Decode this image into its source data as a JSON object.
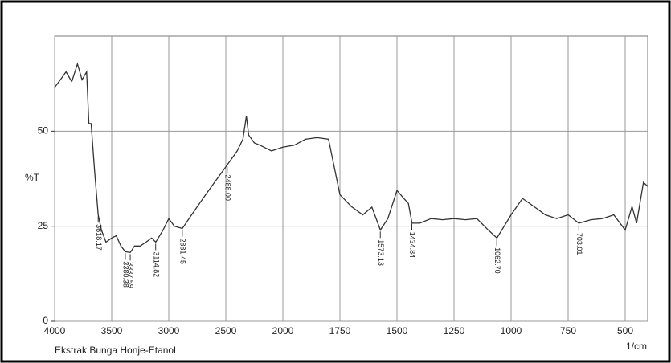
{
  "chart_data": {
    "type": "line",
    "y_label": "%T",
    "x_label": "1/cm",
    "caption": "Ekstrak Bunga Honje-Etanol",
    "xlim": [
      4000,
      400
    ],
    "xticks": [
      4000,
      3500,
      3000,
      2500,
      2000,
      1750,
      1500,
      1250,
      1000,
      750,
      500
    ],
    "ylim": [
      0,
      75
    ],
    "yticks": [
      0,
      25,
      50
    ],
    "grid": true,
    "series": [
      {
        "color": "#333333",
        "x": [
          4000,
          3950,
          3900,
          3850,
          3800,
          3760,
          3720,
          3700,
          3680,
          3650,
          3618,
          3590,
          3550,
          3500,
          3460,
          3420,
          3380,
          3337,
          3300,
          3250,
          3200,
          3150,
          3114,
          3050,
          3000,
          2950,
          2881,
          2800,
          2700,
          2600,
          2500,
          2450,
          2400,
          2350,
          2320,
          2300,
          2250,
          2200,
          2100,
          2000,
          1950,
          1900,
          1850,
          1800,
          1750,
          1700,
          1650,
          1610,
          1573,
          1540,
          1500,
          1470,
          1450,
          1434,
          1400,
          1350,
          1300,
          1250,
          1200,
          1150,
          1100,
          1062,
          1000,
          950,
          900,
          850,
          800,
          750,
          703,
          650,
          600,
          550,
          500,
          470,
          450,
          420,
          400
        ],
        "values": [
          61.5,
          63.5,
          65.6,
          63,
          67.7,
          63.5,
          65.6,
          52,
          52,
          39.6,
          28,
          24,
          20.8,
          21.9,
          22.5,
          19.8,
          18.3,
          18.1,
          19.8,
          19.8,
          20.8,
          21.9,
          20.8,
          24,
          27,
          25,
          24.4,
          28,
          32.3,
          36.5,
          40.6,
          42.7,
          44.8,
          47.9,
          54,
          49,
          46.9,
          46.3,
          44.8,
          45.8,
          46.3,
          47.9,
          48.3,
          47.9,
          33.3,
          30.2,
          28,
          30,
          24,
          27,
          34.4,
          32.3,
          31,
          25.8,
          25.8,
          27,
          26.7,
          27,
          26.7,
          27,
          24,
          21.9,
          28,
          32.3,
          30.2,
          28,
          27,
          28,
          25.8,
          26.7,
          27,
          28,
          24,
          30.2,
          25.8,
          36.5,
          35.4
        ]
      }
    ],
    "annotations": [
      {
        "x": 3618.17,
        "text": "3618.17"
      },
      {
        "x": 3380.38,
        "text": "3380.38"
      },
      {
        "x": 3337.59,
        "text": "3337.59"
      },
      {
        "x": 3114.82,
        "text": "3114.82"
      },
      {
        "x": 2881.45,
        "text": "2881.45"
      },
      {
        "x": 2488.0,
        "text": "2488.00"
      },
      {
        "x": 1573.13,
        "text": "1573.13"
      },
      {
        "x": 1434.84,
        "text": "1434.84"
      },
      {
        "x": 1062.7,
        "text": "1062.70"
      },
      {
        "x": 703.01,
        "text": "703.01"
      }
    ]
  }
}
